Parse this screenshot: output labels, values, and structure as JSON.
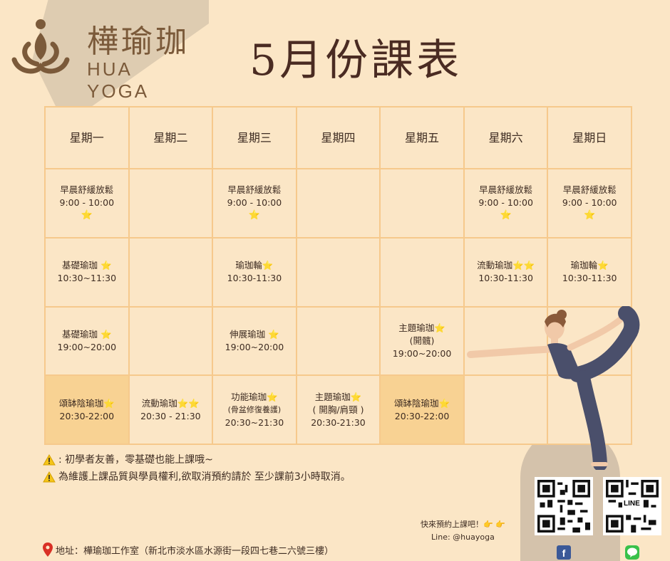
{
  "brand": {
    "name_zh": "樺瑜珈",
    "name_en": "HUA YOGA"
  },
  "title": "5月份課表",
  "days": [
    "星期一",
    "星期二",
    "星期三",
    "星期四",
    "星期五",
    "星期六",
    "星期日"
  ],
  "rows": [
    [
      {
        "lines": [
          "早晨舒緩放鬆",
          "9:00 - 10:00"
        ],
        "star": "⭐"
      },
      {
        "lines": []
      },
      {
        "lines": [
          "早晨舒緩放鬆",
          "9:00 - 10:00"
        ],
        "star": "⭐"
      },
      {
        "lines": []
      },
      {
        "lines": []
      },
      {
        "lines": [
          "早晨舒緩放鬆",
          "9:00 - 10:00"
        ],
        "star": "⭐"
      },
      {
        "lines": [
          "早晨舒緩放鬆",
          "9:00 - 10:00"
        ],
        "star": "⭐"
      }
    ],
    [
      {
        "lines": [
          "基礎瑜珈 ⭐",
          "10:30~11:30"
        ]
      },
      {
        "lines": []
      },
      {
        "lines": [
          "瑜珈輪⭐",
          "10:30-11:30"
        ]
      },
      {
        "lines": []
      },
      {
        "lines": []
      },
      {
        "lines": [
          "流動瑜珈⭐⭐",
          "10:30-11:30"
        ]
      },
      {
        "lines": [
          "瑜珈輪⭐",
          "10:30-11:30"
        ]
      }
    ],
    [
      {
        "lines": [
          "基礎瑜珈 ⭐",
          "19:00~20:00"
        ]
      },
      {
        "lines": []
      },
      {
        "lines": [
          "伸展瑜珈 ⭐",
          "19:00~20:00"
        ]
      },
      {
        "lines": []
      },
      {
        "lines": [
          "主題瑜珈⭐",
          "(開髖)",
          "19:00~20:00"
        ]
      },
      {
        "lines": []
      },
      {
        "lines": []
      }
    ],
    [
      {
        "lines": [
          "頌缽陰瑜珈⭐",
          "20:30-22:00"
        ],
        "highlight": true
      },
      {
        "lines": [
          "流動瑜珈⭐⭐",
          "20:30 - 21:30"
        ]
      },
      {
        "lines": [
          "功能瑜珈⭐",
          "(骨盆修復養護)",
          "20:30~21:30"
        ],
        "small": true
      },
      {
        "lines": [
          "主題瑜珈⭐",
          "( 開胸/肩頸 )",
          "20:30-21:30"
        ]
      },
      {
        "lines": [
          "頌缽陰瑜珈⭐",
          "20:30-22:00"
        ],
        "highlight": true
      },
      {
        "lines": []
      },
      {
        "lines": []
      }
    ]
  ],
  "notes": [
    ": 初學者友善，零基礎也能上課哦~",
    "為維護上課品質與學員權利,欲取消預約請於 至少課前3小時取消。"
  ],
  "address": "地址：樺瑜珈工作室（新北市淡水區水源街一段四七巷二六號三樓）",
  "booking": {
    "line1": "快來預約上課吧！👉 👉",
    "line2": "Line: @huayoga"
  },
  "qr_line_label": "LINE",
  "colors": {
    "background": "#fbe6c6",
    "grid_border": "#f6c98c",
    "highlight": "#f8d293",
    "brand": "#7b5a3a",
    "title": "#4a2b22"
  }
}
